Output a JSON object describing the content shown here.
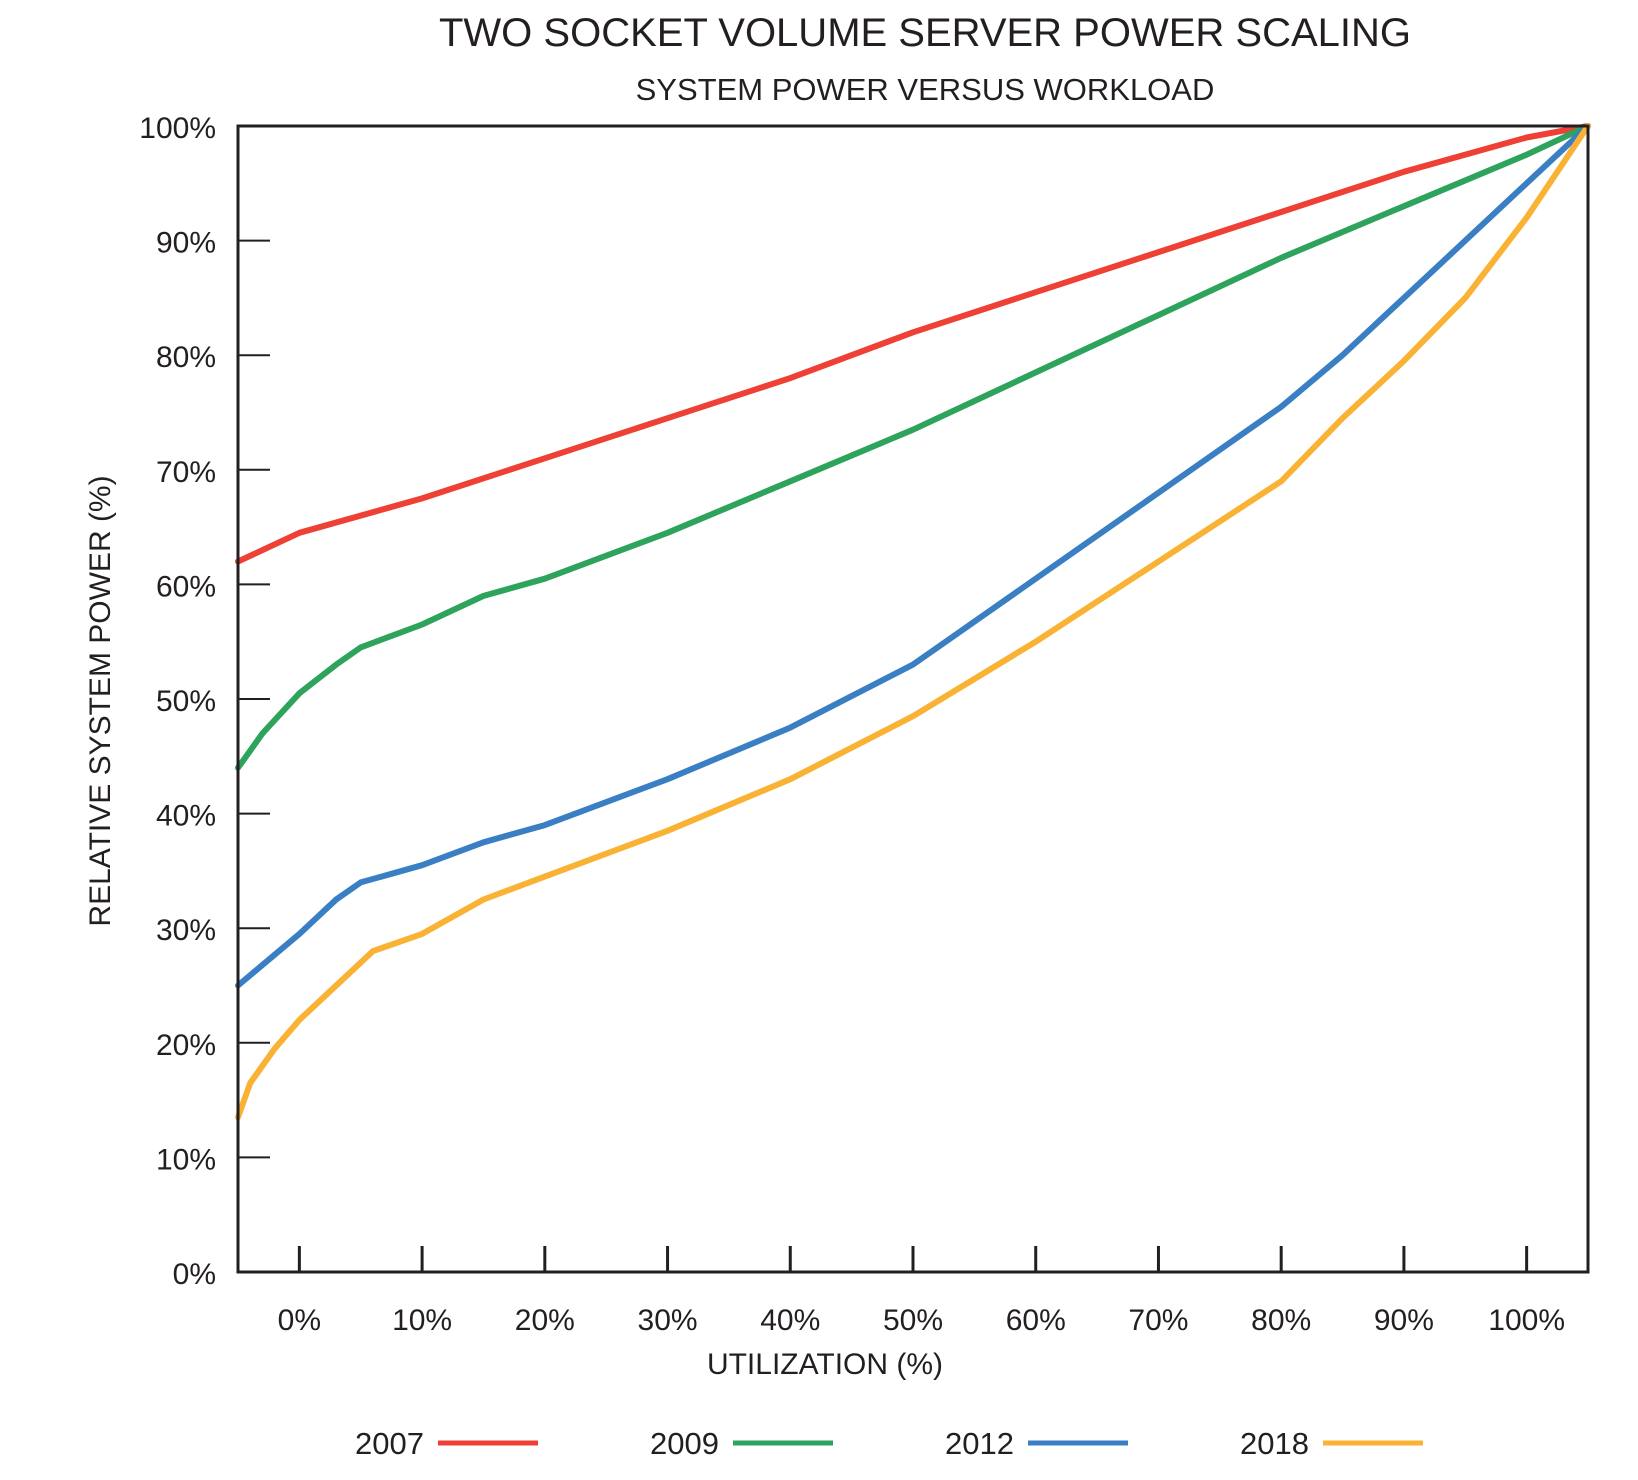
{
  "chart_data": {
    "type": "line",
    "title": "TWO SOCKET VOLUME  SERVER POWER SCALING",
    "subtitle": "SYSTEM POWER VERSUS WORKLOAD",
    "xlabel": "UTILIZATION (%)",
    "ylabel": "RELATIVE SYSTEM POWER (%)",
    "xlim": [
      -5,
      105
    ],
    "ylim": [
      0,
      100
    ],
    "x_ticks": [
      0,
      10,
      20,
      30,
      40,
      50,
      60,
      70,
      80,
      90,
      100
    ],
    "x_tick_labels": [
      "0%",
      "10%",
      "20%",
      "30%",
      "40%",
      "50%",
      "60%",
      "70%",
      "80%",
      "90%",
      "100%"
    ],
    "y_ticks": [
      0,
      10,
      20,
      30,
      40,
      50,
      60,
      70,
      80,
      90,
      100
    ],
    "y_tick_labels": [
      "0%",
      "10%",
      "20%",
      "30%",
      "40%",
      "50%",
      "60%",
      "70%",
      "80%",
      "90%",
      "100%"
    ],
    "grid": false,
    "legend_position": "bottom",
    "series": [
      {
        "name": "2007",
        "color": "#ee4035",
        "x": [
          -5,
          0,
          10,
          20,
          30,
          40,
          50,
          60,
          70,
          80,
          90,
          100,
          105
        ],
        "y": [
          62,
          64.5,
          67.5,
          71,
          74.5,
          78,
          82,
          85.5,
          89,
          92.5,
          96,
          99,
          100
        ]
      },
      {
        "name": "2009",
        "color": "#2ea35b",
        "x": [
          -5,
          -3,
          0,
          3,
          5,
          10,
          15,
          20,
          30,
          40,
          50,
          60,
          70,
          80,
          90,
          100,
          105
        ],
        "y": [
          44,
          47,
          50.5,
          53,
          54.5,
          56.5,
          59,
          60.5,
          64.5,
          69,
          73.5,
          78.5,
          83.5,
          88.5,
          93,
          97.5,
          100
        ]
      },
      {
        "name": "2012",
        "color": "#3a7fc3",
        "x": [
          -5,
          0,
          3,
          5,
          10,
          15,
          20,
          30,
          40,
          50,
          60,
          70,
          80,
          85,
          90,
          95,
          100,
          105
        ],
        "y": [
          25,
          29.5,
          32.5,
          34,
          35.5,
          37.5,
          39,
          43,
          47.5,
          53,
          60.5,
          68,
          75.5,
          80,
          85,
          90,
          95,
          100
        ]
      },
      {
        "name": "2018",
        "color": "#f9b233",
        "x": [
          -5,
          -4,
          -2,
          0,
          3,
          6,
          10,
          15,
          20,
          30,
          40,
          50,
          60,
          70,
          80,
          85,
          90,
          95,
          100,
          105
        ],
        "y": [
          13.5,
          16.5,
          19.5,
          22,
          25,
          28,
          29.5,
          32.5,
          34.5,
          38.5,
          43,
          48.5,
          55,
          62,
          69,
          74.5,
          79.5,
          85,
          92,
          100
        ]
      }
    ]
  }
}
